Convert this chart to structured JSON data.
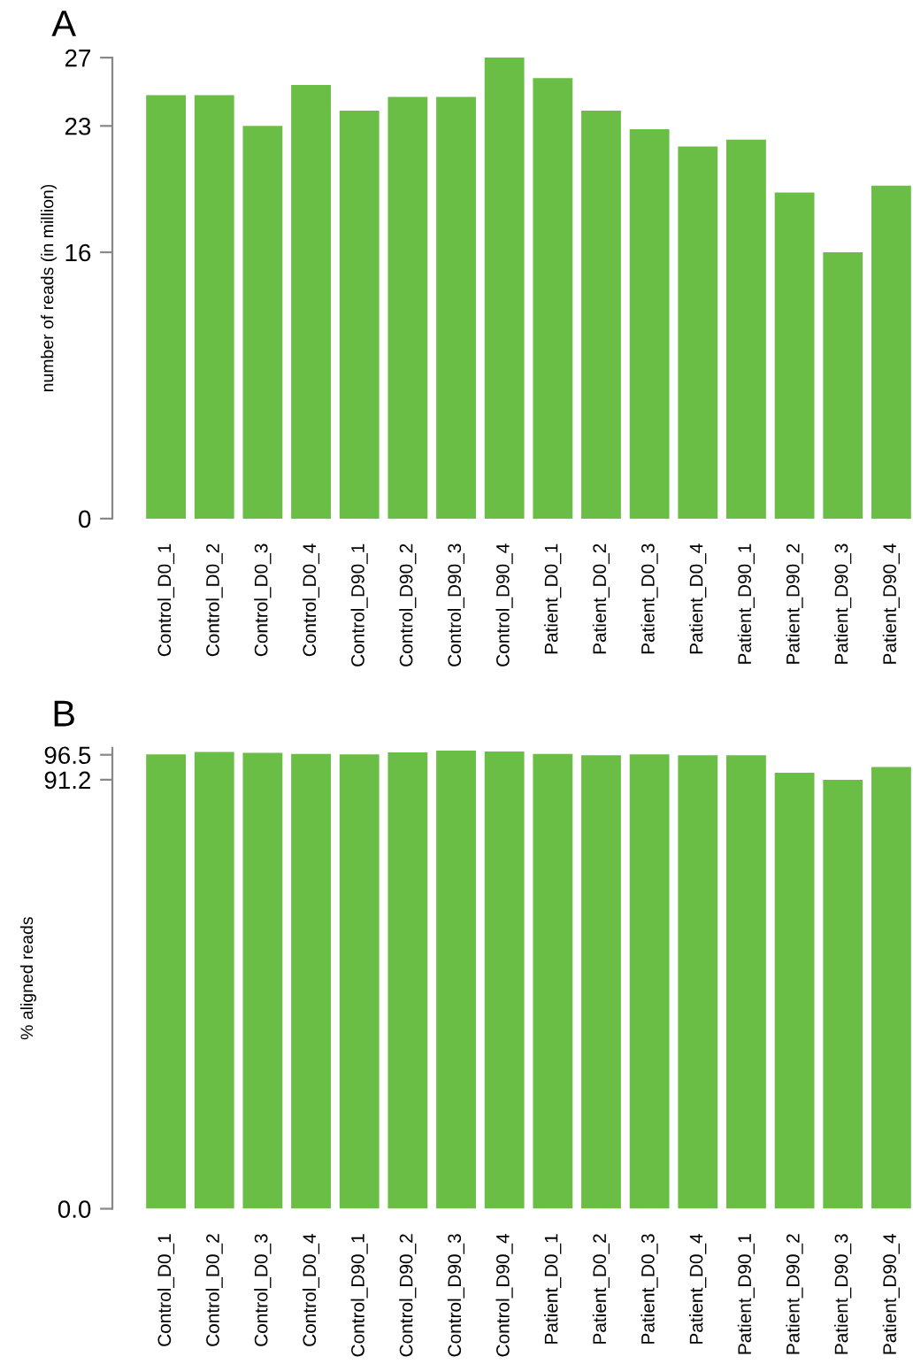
{
  "chart_data": [
    {
      "type": "bar",
      "title": "A",
      "ylabel": "number of reads (in million)",
      "categories": [
        "Control_D0_1",
        "Control_D0_2",
        "Control_D0_3",
        "Control_D0_4",
        "Control_D90_1",
        "Control_D90_2",
        "Control_D90_3",
        "Control_D90_4",
        "Patient_D0_1",
        "Patient_D0_2",
        "Patient_D0_3",
        "Patient_D0_4",
        "Patient_D90_1",
        "Patient_D90_2",
        "Patient_D90_3",
        "Patient_D90_4"
      ],
      "values": [
        24.8,
        24.8,
        23.0,
        25.4,
        23.9,
        24.7,
        24.7,
        27.0,
        25.8,
        23.9,
        22.8,
        21.8,
        22.2,
        19.1,
        15.6,
        19.5
      ],
      "color": "#6abd45",
      "ylim": [
        0,
        27
      ],
      "yticks": [
        0,
        {
          "value": 15.6,
          "label": "16"
        },
        23,
        27
      ],
      "grid": false
    },
    {
      "type": "bar",
      "title": "B",
      "ylabel": "% aligned reads",
      "categories": [
        "Control_D0_1",
        "Control_D0_2",
        "Control_D0_3",
        "Control_D0_4",
        "Control_D90_1",
        "Control_D90_2",
        "Control_D90_3",
        "Control_D90_4",
        "Patient_D0_1",
        "Patient_D0_2",
        "Patient_D0_3",
        "Patient_D0_4",
        "Patient_D90_1",
        "Patient_D90_2",
        "Patient_D90_3",
        "Patient_D90_4"
      ],
      "values": [
        96.6,
        97.1,
        96.9,
        96.7,
        96.6,
        97.0,
        97.4,
        97.2,
        96.7,
        96.4,
        96.6,
        96.4,
        96.4,
        92.7,
        91.2,
        93.9
      ],
      "color": "#6abd45",
      "ylim": [
        0,
        98
      ],
      "yticks": [
        {
          "value": 0,
          "label": "0.0"
        },
        91.2,
        96.5
      ],
      "grid": false
    }
  ]
}
